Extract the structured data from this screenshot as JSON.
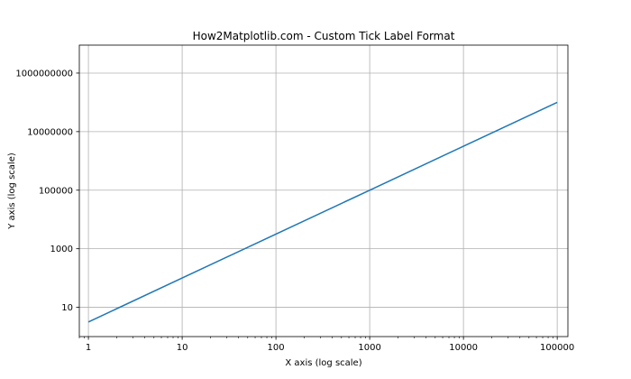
{
  "chart_data": {
    "type": "line",
    "title": "How2Matplotlib.com - Custom Tick Label Format",
    "xlabel": "X axis (log scale)",
    "ylabel": "Y axis (log scale)",
    "xscale": "log",
    "yscale": "log",
    "xlim": [
      0.8,
      130000
    ],
    "ylim": [
      1,
      9000000000
    ],
    "grid": true,
    "x_ticks": [
      1,
      10,
      100,
      1000,
      10000,
      100000
    ],
    "x_tick_labels": [
      "1",
      "10",
      "100",
      "1000",
      "10000",
      "100000"
    ],
    "y_ticks": [
      10,
      1000,
      100000,
      10000000,
      1000000000
    ],
    "y_tick_labels": [
      "10",
      "1000",
      "100000",
      "10000000",
      "1000000000"
    ],
    "series": [
      {
        "x": [
          1,
          10,
          100,
          1000,
          10000,
          100000
        ],
        "y": [
          3.16,
          100,
          3162,
          100000,
          3162278,
          100000000
        ],
        "color": "#1f77b4"
      }
    ]
  }
}
